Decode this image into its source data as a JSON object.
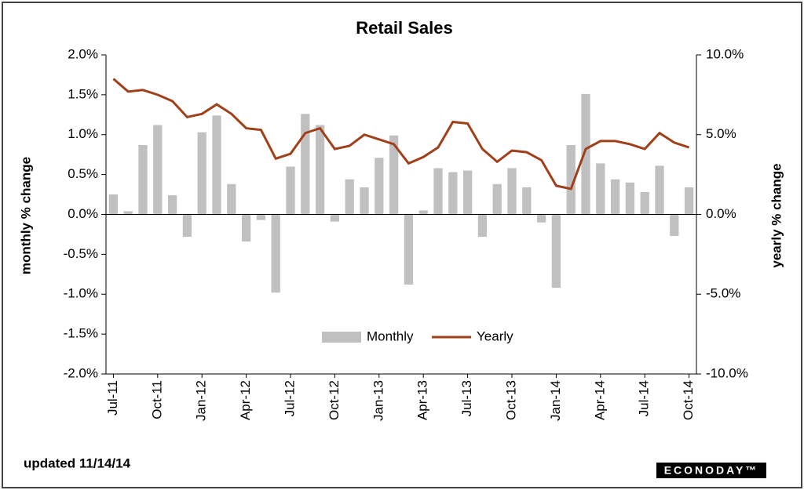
{
  "chart_data": {
    "type": "bar_line",
    "title": "Retail Sales",
    "ylabel": "monthly % change",
    "y2label": "yearly % change",
    "footer": "updated 11/14/14",
    "logo": "ECONODAY™",
    "categories": [
      "Jul-11",
      null,
      null,
      "Oct-11",
      null,
      null,
      "Jan-12",
      null,
      null,
      "Apr-12",
      null,
      null,
      "Jul-12",
      null,
      null,
      "Oct-12",
      null,
      null,
      "Jan-13",
      null,
      null,
      "Apr-13",
      null,
      null,
      "Jul-13",
      null,
      null,
      "Oct-13",
      null,
      null,
      "Jan-14",
      null,
      null,
      "Apr-14",
      null,
      null,
      "Jul-14",
      null,
      null,
      "Oct-14"
    ],
    "series": [
      {
        "name": "Monthly",
        "type": "bar",
        "color": "#c0c0c0",
        "values": [
          0.25,
          0.04,
          0.87,
          1.12,
          0.24,
          -0.28,
          1.03,
          1.24,
          0.38,
          -0.34,
          -0.07,
          -0.98,
          0.6,
          1.26,
          1.12,
          -0.09,
          0.44,
          0.34,
          0.71,
          0.99,
          -0.88,
          0.05,
          0.58,
          0.53,
          0.55,
          -0.28,
          0.38,
          0.58,
          0.34,
          -0.1,
          -0.92,
          0.87,
          1.51,
          0.64,
          0.44,
          0.4,
          0.28,
          0.61,
          -0.27,
          0.34
        ]
      },
      {
        "name": "Yearly",
        "type": "line",
        "axis": "y2",
        "color": "#a0401a",
        "values": [
          8.5,
          7.7,
          7.8,
          7.5,
          7.1,
          6.1,
          6.3,
          6.9,
          6.3,
          5.4,
          5.3,
          3.5,
          3.8,
          5.1,
          5.4,
          4.1,
          4.3,
          5.0,
          4.7,
          4.4,
          3.2,
          3.6,
          4.2,
          5.8,
          5.7,
          4.1,
          3.3,
          4.0,
          3.9,
          3.4,
          1.8,
          1.6,
          4.1,
          4.6,
          4.6,
          4.4,
          4.1,
          5.1,
          4.5,
          4.2
        ]
      }
    ],
    "ylim": [
      -2,
      2
    ],
    "yticks": [
      {
        "value": -2,
        "label": "-2.0%"
      },
      {
        "value": -1.5,
        "label": "-1.5%"
      },
      {
        "value": -1,
        "label": "-1.0%"
      },
      {
        "value": -0.5,
        "label": "-0.5%"
      },
      {
        "value": 0,
        "label": "0.0%"
      },
      {
        "value": 0.5,
        "label": "0.5%"
      },
      {
        "value": 1,
        "label": "1.0%"
      },
      {
        "value": 1.5,
        "label": "1.5%"
      },
      {
        "value": 2,
        "label": "2.0%"
      }
    ],
    "y2lim": [
      -10,
      10
    ],
    "y2ticks": [
      {
        "value": -10,
        "label": "-10.0%"
      },
      {
        "value": -5,
        "label": "-5.0%"
      },
      {
        "value": 0,
        "label": "0.0%"
      },
      {
        "value": 5,
        "label": "5.0%"
      },
      {
        "value": 10,
        "label": "10.0%"
      }
    ],
    "legend": "bottom"
  }
}
